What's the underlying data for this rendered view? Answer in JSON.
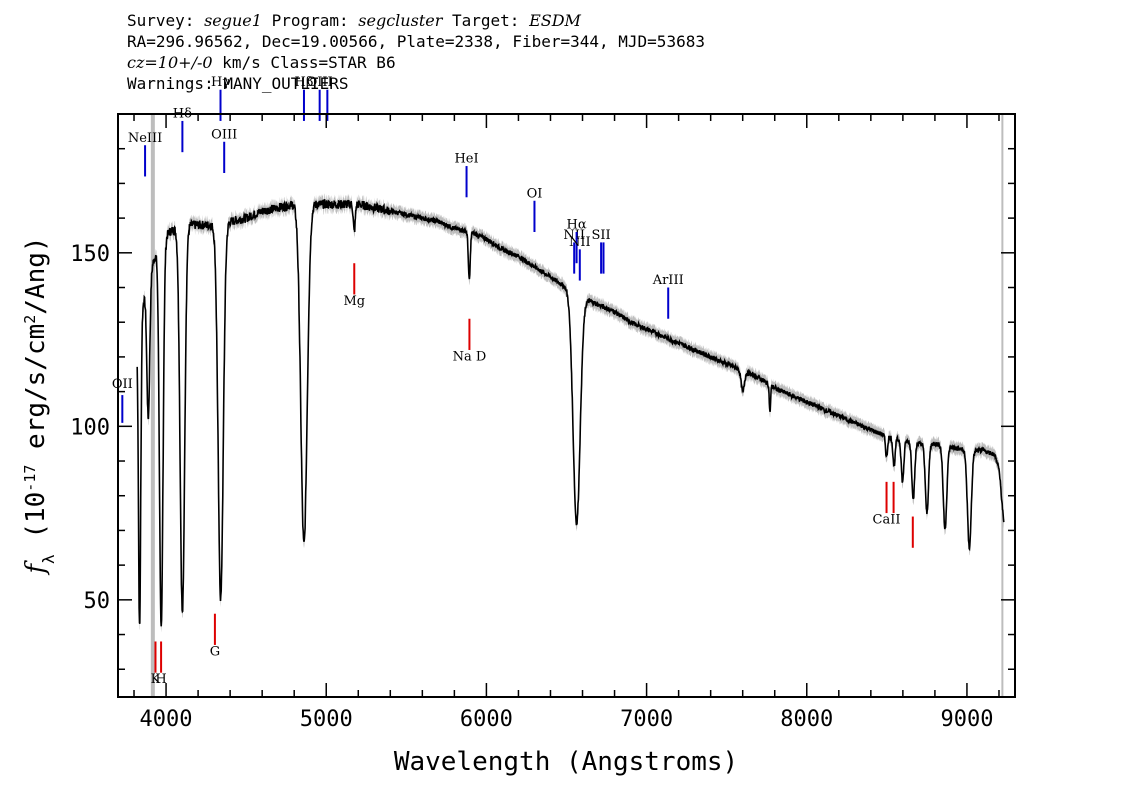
{
  "header": {
    "survey_label": "Survey:",
    "survey": "segue1",
    "program_label": "Program:",
    "program": "segcluster",
    "target_label": "Target:",
    "target": "ESDM",
    "line2": "RA=296.96562, Dec=19.00566, Plate=2338, Fiber=344, MJD=53683",
    "cz": "cz=10+/-0",
    "line3_rest": " km/s Class=STAR B6",
    "line4": "Warnings: MANY_OUTLIERS"
  },
  "colors": {
    "spectrum": "#000000",
    "error_band": "#bdbdbd",
    "emission_lines": "#0000cc",
    "absorption_lines": "#dd0000",
    "line_marker_black": "#000000"
  },
  "chart_data": {
    "type": "line",
    "xlabel": "Wavelength (Angstroms)",
    "ylabel": "f_λ (10^-17 erg/s/cm^2/Ang)",
    "xlim": [
      3700,
      9300
    ],
    "ylim": [
      22,
      190
    ],
    "x_ticks": [
      4000,
      5000,
      6000,
      7000,
      8000,
      9000
    ],
    "y_ticks": [
      50,
      100,
      150
    ],
    "grid": false,
    "masked_bands": [
      [
        3905,
        3930
      ],
      [
        9215,
        9225
      ]
    ],
    "continuum": [
      [
        3820,
        126
      ],
      [
        3880,
        141
      ],
      [
        3950,
        152
      ],
      [
        4020,
        156
      ],
      [
        4100,
        158
      ],
      [
        4200,
        158
      ],
      [
        4300,
        158
      ],
      [
        4400,
        159
      ],
      [
        4500,
        160
      ],
      [
        4600,
        162
      ],
      [
        4700,
        163
      ],
      [
        4800,
        164
      ],
      [
        4900,
        164
      ],
      [
        5000,
        164
      ],
      [
        5100,
        164
      ],
      [
        5200,
        164
      ],
      [
        5300,
        163
      ],
      [
        5400,
        162
      ],
      [
        5500,
        161
      ],
      [
        5600,
        160
      ],
      [
        5700,
        159
      ],
      [
        5800,
        157
      ],
      [
        5900,
        156
      ],
      [
        6000,
        154
      ],
      [
        6100,
        151
      ],
      [
        6200,
        149
      ],
      [
        6300,
        146
      ],
      [
        6400,
        143
      ],
      [
        6500,
        140
      ],
      [
        6600,
        137
      ],
      [
        6700,
        135
      ],
      [
        6800,
        133
      ],
      [
        6900,
        130
      ],
      [
        7000,
        128
      ],
      [
        7100,
        126
      ],
      [
        7200,
        124
      ],
      [
        7300,
        122
      ],
      [
        7400,
        120
      ],
      [
        7500,
        118
      ],
      [
        7600,
        116
      ],
      [
        7700,
        114
      ],
      [
        7800,
        111
      ],
      [
        7900,
        109
      ],
      [
        8000,
        107
      ],
      [
        8100,
        105
      ],
      [
        8200,
        103
      ],
      [
        8300,
        101
      ],
      [
        8400,
        99
      ],
      [
        8500,
        97
      ],
      [
        8600,
        96
      ],
      [
        8700,
        95
      ],
      [
        8800,
        95
      ],
      [
        8900,
        94
      ],
      [
        9000,
        93
      ],
      [
        9100,
        93
      ],
      [
        9170,
        92
      ],
      [
        9200,
        88
      ],
      [
        9230,
        72
      ]
    ],
    "absorption_features": [
      {
        "center": 3835,
        "depth": 88,
        "width": 7
      },
      {
        "center": 3889,
        "depth": 40,
        "width": 9
      },
      {
        "center": 3970,
        "depth": 112,
        "width": 11
      },
      {
        "center": 4102,
        "depth": 112,
        "width": 14
      },
      {
        "center": 4341,
        "depth": 108,
        "width": 16
      },
      {
        "center": 4861,
        "depth": 98,
        "width": 20
      },
      {
        "center": 5175,
        "depth": 8,
        "width": 6
      },
      {
        "center": 5893,
        "depth": 14,
        "width": 6
      },
      {
        "center": 6563,
        "depth": 66,
        "width": 22
      },
      {
        "center": 7600,
        "depth": 6,
        "width": 10
      },
      {
        "center": 7770,
        "depth": 8,
        "width": 4
      },
      {
        "center": 8498,
        "depth": 6,
        "width": 6
      },
      {
        "center": 8545,
        "depth": 8,
        "width": 7
      },
      {
        "center": 8598,
        "depth": 12,
        "width": 8
      },
      {
        "center": 8665,
        "depth": 16,
        "width": 9
      },
      {
        "center": 8750,
        "depth": 20,
        "width": 10
      },
      {
        "center": 8863,
        "depth": 24,
        "width": 11
      },
      {
        "center": 9015,
        "depth": 28,
        "width": 12
      }
    ],
    "emission_line_markers": [
      {
        "label": "OII",
        "wave": 3727,
        "y1": 101,
        "y2": 109,
        "label_y": 111
      },
      {
        "label": "NeIII",
        "wave": 3869,
        "y1": 172,
        "y2": 181,
        "label_y": 182
      },
      {
        "label": "Hδ",
        "wave": 4102,
        "y1": 179,
        "y2": 188,
        "label_y": 189
      },
      {
        "label": "Hγ",
        "wave": 4340,
        "y1": 188,
        "y2": 197,
        "label_y": 198
      },
      {
        "label": "OIII",
        "wave": 4363,
        "y1": 173,
        "y2": 182,
        "label_y": 183
      },
      {
        "label": "Hβ",
        "wave": 4861,
        "y1": 188,
        "y2": 197,
        "label_y": 198
      },
      {
        "label": "OIII",
        "wave": 4959,
        "y1": 188,
        "y2": 197,
        "label_y": 198
      },
      {
        "label": "OIII",
        "wave": 5007,
        "y1": 188,
        "y2": 197,
        "label_y": 0
      },
      {
        "label": "HeI",
        "wave": 5876,
        "y1": 166,
        "y2": 175,
        "label_y": 176
      },
      {
        "label": "OI",
        "wave": 6300,
        "y1": 156,
        "y2": 165,
        "label_y": 166
      },
      {
        "label": "NII",
        "wave": 6548,
        "y1": 144,
        "y2": 153,
        "label_y": 154
      },
      {
        "label": "Hα",
        "wave": 6563,
        "y1": 147,
        "y2": 156,
        "label_y": 157
      },
      {
        "label": "NII",
        "wave": 6583,
        "y1": 142,
        "y2": 151,
        "label_y": 152
      },
      {
        "label": "SII",
        "wave": 6716,
        "y1": 144,
        "y2": 153,
        "label_y": 154
      },
      {
        "label": "SII",
        "wave": 6731,
        "y1": 144,
        "y2": 153,
        "label_y": 0
      },
      {
        "label": "ArIII",
        "wave": 7135,
        "y1": 131,
        "y2": 140,
        "label_y": 141
      }
    ],
    "absorption_line_markers": [
      {
        "label": "K",
        "wave": 3934,
        "y1": 29,
        "y2": 38,
        "label_y": 26
      },
      {
        "label": "H",
        "wave": 3969,
        "y1": 29,
        "y2": 38,
        "label_y": 26
      },
      {
        "label": "G",
        "wave": 4305,
        "y1": 37,
        "y2": 46,
        "label_y": 34
      },
      {
        "label": "Mg",
        "wave": 5175,
        "y1": 138,
        "y2": 147,
        "label_y": 135
      },
      {
        "label": "Na D",
        "wave": 5894,
        "y1": 122,
        "y2": 131,
        "label_y": 119
      },
      {
        "label": "CaII",
        "wave": 8498,
        "y1": 75,
        "y2": 84,
        "label_y": 72
      },
      {
        "label": "CaII",
        "wave": 8542,
        "y1": 75,
        "y2": 84,
        "label_y": 0
      },
      {
        "label": "CaII",
        "wave": 8662,
        "y1": 65,
        "y2": 74,
        "label_y": 0
      }
    ]
  }
}
